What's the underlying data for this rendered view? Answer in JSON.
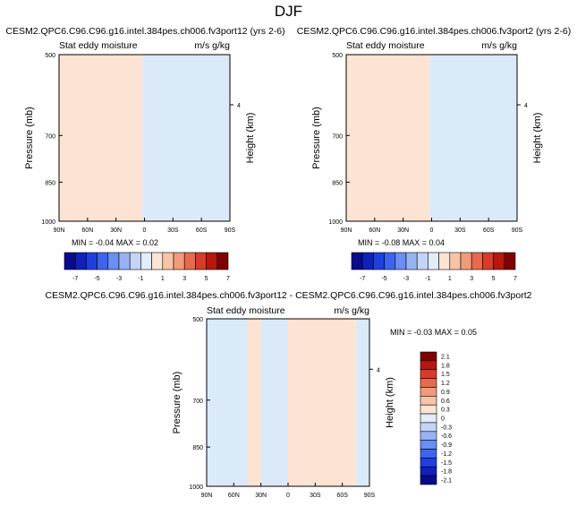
{
  "page_title": "DJF",
  "chart_data": [
    {
      "type": "heatmap",
      "title": "CESM2.QPC6.C96.C96.g16.intel.384pes.ch006.fv3port12 (yrs 2-6)",
      "left_string": "Stat eddy moisture",
      "right_string": "m/s g/kg",
      "xlabel": "",
      "ylabel": "Pressure (mb)",
      "ylabel_right": "Height (km)",
      "x_ticks": [
        "90N",
        "60N",
        "30N",
        "0",
        "30S",
        "60S",
        "90S"
      ],
      "y_ticks": [
        "500",
        "700",
        "850",
        "1000"
      ],
      "y_right_ticks": [
        "4"
      ],
      "x_range": [
        90,
        -90
      ],
      "y_range": [
        1000,
        500
      ],
      "y_scale": "log",
      "levels": [
        -7,
        -6,
        -5,
        -4,
        -3,
        -2,
        -1,
        0,
        1,
        2,
        3,
        4,
        5,
        6,
        7
      ],
      "regions": [
        {
          "name": "positive",
          "x_range": [
            90,
            2
          ],
          "value": 0.01
        },
        {
          "name": "negative",
          "x_range": [
            2,
            -90
          ],
          "value": -0.01
        }
      ],
      "min_max": "MIN = -0.04   MAX =  0.02"
    },
    {
      "type": "heatmap",
      "title": "CESM2.QPC6.C96.C96.g16.intel.384pes.ch006.fv3port2 (yrs 2-6)",
      "left_string": "Stat eddy moisture",
      "right_string": "m/s g/kg",
      "xlabel": "",
      "ylabel": "Pressure (mb)",
      "ylabel_right": "Height (km)",
      "x_ticks": [
        "90N",
        "60N",
        "30N",
        "0",
        "30S",
        "60S",
        "90S"
      ],
      "y_ticks": [
        "500",
        "700",
        "850",
        "1000"
      ],
      "y_right_ticks": [
        "4"
      ],
      "x_range": [
        90,
        -90
      ],
      "y_range": [
        1000,
        500
      ],
      "y_scale": "log",
      "levels": [
        -7,
        -6,
        -5,
        -4,
        -3,
        -2,
        -1,
        0,
        1,
        2,
        3,
        4,
        5,
        6,
        7
      ],
      "regions": [
        {
          "name": "positive",
          "x_range": [
            90,
            2
          ],
          "value": 0.01
        },
        {
          "name": "negative",
          "x_range": [
            2,
            -90
          ],
          "value": -0.01
        }
      ],
      "min_max": "MIN = -0.08   MAX =  0.04"
    },
    {
      "type": "heatmap",
      "title": "CESM2.QPC6.C96.C96.g16.intel.384pes.ch006.fv3port12 - CESM2.QPC6.C96.C96.g16.intel.384pes.ch006.fv3port2",
      "left_string": "Stat eddy moisture",
      "right_string": "m/s g/kg",
      "xlabel": "",
      "ylabel": "Pressure (mb)",
      "ylabel_right": "Height (km)",
      "x_ticks": [
        "90N",
        "60N",
        "30N",
        "0",
        "30S",
        "60S",
        "90S"
      ],
      "y_ticks": [
        "500",
        "700",
        "850",
        "1000"
      ],
      "y_right_ticks": [
        "4"
      ],
      "x_range": [
        90,
        -90
      ],
      "y_range": [
        1000,
        500
      ],
      "y_scale": "log",
      "levels": [
        -2.1,
        -1.8,
        -1.5,
        -1.2,
        -0.9,
        -0.6,
        -0.3,
        0,
        0.3,
        0.6,
        0.9,
        1.2,
        1.5,
        1.8,
        2.1
      ],
      "regions": [
        {
          "name": "negative",
          "x_range": [
            90,
            45
          ],
          "value": -0.01
        },
        {
          "name": "positive",
          "x_range": [
            45,
            30
          ],
          "value": 0.01
        },
        {
          "name": "negative",
          "x_range": [
            30,
            0
          ],
          "value": -0.01
        },
        {
          "name": "positive",
          "x_range": [
            0,
            -75
          ],
          "value": 0.01
        },
        {
          "name": "negative",
          "x_range": [
            -75,
            -90
          ],
          "value": -0.01
        }
      ],
      "min_max": "MIN = -0.03   MAX =   0.05"
    }
  ],
  "colorbars": {
    "horizontal_labels": [
      "-7",
      "-5",
      "-3",
      "-1",
      "1",
      "3",
      "5",
      "7"
    ],
    "horizontal_colors": [
      "#0a0a8a",
      "#1020b8",
      "#1f40e0",
      "#3c64f0",
      "#6a8ef2",
      "#97b3f4",
      "#c3d5f6",
      "#e2ecfa",
      "#fde3d3",
      "#f7c4a8",
      "#f19a7c",
      "#e86a4c",
      "#d83c28",
      "#b8170d",
      "#7f0202"
    ],
    "vertical_labels": [
      "2.1",
      "1.8",
      "1.5",
      "1.2",
      "0.9",
      "0.6",
      "0.3",
      "0",
      "-0.3",
      "-0.6",
      "-0.9",
      "-1.2",
      "-1.5",
      "-1.8",
      "-2.1"
    ],
    "vertical_colors": [
      "#7f0202",
      "#b8170d",
      "#d83c28",
      "#e86a4c",
      "#f19a7c",
      "#f7c4a8",
      "#fde3d3",
      "#e2ecfa",
      "#c3d5f6",
      "#97b3f4",
      "#6a8ef2",
      "#3c64f0",
      "#1f40e0",
      "#1020b8",
      "#0a0a8a"
    ]
  },
  "colors": {
    "positive_fill": "#fde3d3",
    "negative_fill": "#dbeaf9"
  }
}
